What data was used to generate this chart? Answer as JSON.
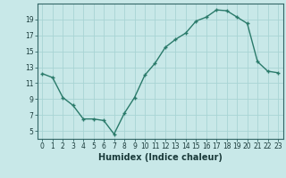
{
  "x": [
    0,
    1,
    2,
    3,
    4,
    5,
    6,
    7,
    8,
    9,
    10,
    11,
    12,
    13,
    14,
    15,
    16,
    17,
    18,
    19,
    20,
    21,
    22,
    23
  ],
  "y": [
    12.2,
    11.7,
    9.2,
    8.2,
    6.5,
    6.5,
    6.3,
    4.6,
    7.2,
    9.2,
    12.0,
    13.5,
    15.5,
    16.5,
    17.3,
    18.8,
    19.3,
    20.2,
    20.1,
    19.3,
    18.5,
    13.7,
    12.5,
    12.3
  ],
  "line_color": "#2a7a6a",
  "marker_color": "#2a7a6a",
  "bg_color": "#c8e8e8",
  "grid_color": "#a8d4d4",
  "xlabel": "Humidex (Indice chaleur)",
  "xlim": [
    -0.5,
    23.5
  ],
  "ylim": [
    4,
    21
  ],
  "xticks": [
    0,
    1,
    2,
    3,
    4,
    5,
    6,
    7,
    8,
    9,
    10,
    11,
    12,
    13,
    14,
    15,
    16,
    17,
    18,
    19,
    20,
    21,
    22,
    23
  ],
  "yticks": [
    5,
    7,
    9,
    11,
    13,
    15,
    17,
    19
  ],
  "tick_fontsize": 5.5,
  "xlabel_fontsize": 7,
  "marker_size": 3,
  "linewidth": 1.0
}
